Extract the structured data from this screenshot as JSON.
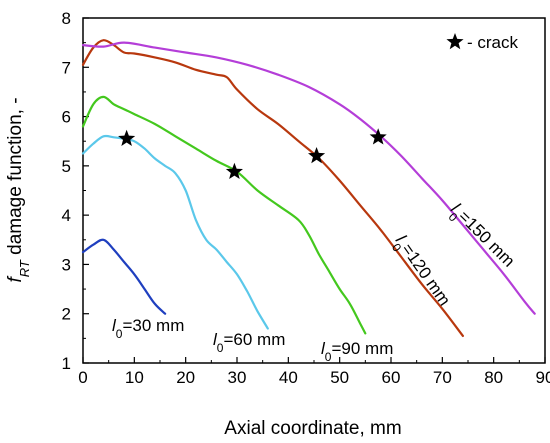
{
  "chart_data": {
    "type": "line",
    "title": "",
    "xlabel": "Axial coordinate, mm",
    "ylabel": {
      "italic_main": "f",
      "sub": "RT",
      "rest": " damage function, -"
    },
    "xlim": [
      0,
      90
    ],
    "ylim": [
      1,
      8
    ],
    "xticks": [
      0,
      10,
      20,
      30,
      40,
      50,
      60,
      70,
      80,
      90
    ],
    "yticks": [
      1,
      2,
      3,
      4,
      5,
      6,
      7,
      8
    ],
    "grid": false,
    "legend": {
      "placement": "top-right",
      "marker": "star",
      "text": "- crack"
    },
    "series": [
      {
        "name": "30 mm",
        "label_main": "l",
        "label_sub": "0",
        "label_rest": "=30 mm",
        "color": "#1f3fbf",
        "x": [
          0,
          2,
          4,
          6,
          8,
          10,
          12,
          14,
          16
        ],
        "y": [
          3.25,
          3.4,
          3.5,
          3.3,
          3.05,
          2.8,
          2.5,
          2.2,
          2.0
        ]
      },
      {
        "name": "60 mm",
        "label_main": "l",
        "label_sub": "0",
        "label_rest": "=60 mm",
        "color": "#5bc8ea",
        "x": [
          0,
          2,
          4,
          6,
          8,
          10,
          12,
          14,
          16,
          18,
          20,
          22,
          24,
          26,
          28,
          30,
          32,
          34,
          36
        ],
        "y": [
          5.25,
          5.45,
          5.6,
          5.58,
          5.55,
          5.5,
          5.35,
          5.15,
          5.0,
          4.85,
          4.5,
          3.9,
          3.5,
          3.3,
          3.05,
          2.8,
          2.45,
          2.05,
          1.7
        ],
        "crack": {
          "x": 8.5,
          "y": 5.55
        }
      },
      {
        "name": "90 mm",
        "label_main": "l",
        "label_sub": "0",
        "label_rest": "=90 mm",
        "color": "#44c81e",
        "x": [
          0,
          2,
          4,
          6,
          8,
          10,
          14,
          18,
          22,
          26,
          30,
          34,
          38,
          42,
          44,
          46,
          48,
          50,
          52,
          54,
          55
        ],
        "y": [
          5.8,
          6.25,
          6.4,
          6.25,
          6.15,
          6.05,
          5.85,
          5.6,
          5.35,
          5.1,
          4.88,
          4.5,
          4.2,
          3.9,
          3.6,
          3.2,
          2.85,
          2.5,
          2.2,
          1.8,
          1.6
        ],
        "crack": {
          "x": 29.5,
          "y": 4.88
        }
      },
      {
        "name": "120 mm",
        "label_main": "l",
        "label_sub": "0",
        "label_rest": "=120 mm",
        "color": "#b8380e",
        "x": [
          0,
          2,
          4,
          6,
          8,
          10,
          14,
          18,
          22,
          26,
          28,
          30,
          34,
          38,
          42,
          46,
          50,
          54,
          58,
          62,
          66,
          70,
          74
        ],
        "y": [
          7.05,
          7.4,
          7.55,
          7.45,
          7.3,
          7.28,
          7.2,
          7.1,
          6.95,
          6.85,
          6.8,
          6.55,
          6.15,
          5.85,
          5.5,
          5.15,
          4.7,
          4.2,
          3.7,
          3.15,
          2.6,
          2.1,
          1.55
        ],
        "crack": {
          "x": 45.5,
          "y": 5.2
        }
      },
      {
        "name": "150 mm",
        "label_main": "l",
        "label_sub": "0",
        "label_rest": "=150 mm",
        "color": "#b43ed8",
        "x": [
          0,
          4,
          8,
          14,
          20,
          26,
          32,
          38,
          44,
          50,
          54,
          58,
          62,
          66,
          70,
          74,
          78,
          82,
          86,
          88
        ],
        "y": [
          7.45,
          7.42,
          7.5,
          7.4,
          7.3,
          7.2,
          7.05,
          6.85,
          6.6,
          6.25,
          5.95,
          5.6,
          5.2,
          4.75,
          4.3,
          3.8,
          3.3,
          2.8,
          2.25,
          2.0
        ],
        "crack": {
          "x": 57.5,
          "y": 5.58
        }
      }
    ]
  }
}
